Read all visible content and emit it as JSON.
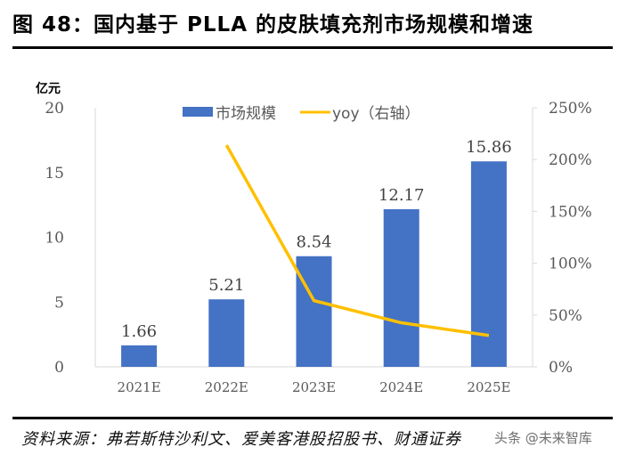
{
  "title": "图 48：国内基于 PLLA 的皮肤填充剂市场规模和增速",
  "source": "资料来源：弗若斯特沙利文、爱美客港股招股书、财通证券",
  "watermark": "头条 @未来智库",
  "chart_data": {
    "type": "bar",
    "title": "国内基于 PLLA 的皮肤填充剂市场规模和增速",
    "categories": [
      "2021E",
      "2022E",
      "2023E",
      "2024E",
      "2025E"
    ],
    "y_unit_label": "亿元",
    "ylim": [
      0,
      20
    ],
    "y_ticks": [
      "0",
      "5",
      "10",
      "15",
      "20"
    ],
    "y_tick_values": [
      0,
      5,
      10,
      15,
      20
    ],
    "y2lim": [
      0,
      250
    ],
    "y2_ticks": [
      "0%",
      "50%",
      "100%",
      "150%",
      "200%",
      "250%"
    ],
    "y2_tick_values": [
      0,
      50,
      100,
      150,
      200,
      250
    ],
    "legend_position": "top-center",
    "grid": false,
    "series": [
      {
        "name": "市场规模",
        "type": "bar",
        "axis": "left",
        "color": "#4472C4",
        "values": [
          1.66,
          5.21,
          8.54,
          12.17,
          15.86
        ],
        "labels": [
          "1.66",
          "5.21",
          "8.54",
          "12.17",
          "15.86"
        ]
      },
      {
        "name": "yoy（右轴）",
        "type": "line",
        "axis": "right",
        "color": "#FFC000",
        "values": [
          null,
          213.9,
          63.9,
          42.5,
          30.3
        ]
      }
    ]
  }
}
